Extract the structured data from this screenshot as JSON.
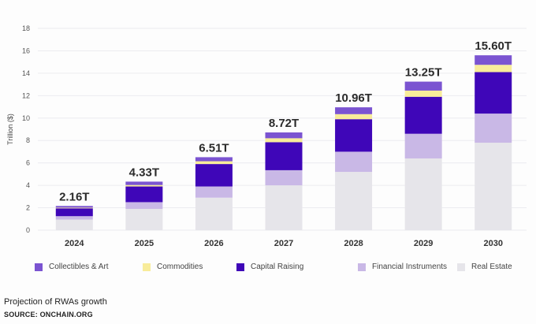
{
  "chart_data": {
    "type": "bar",
    "stacked": true,
    "title": "",
    "xlabel": "",
    "ylabel": "Trillion ($)",
    "ylim": [
      0,
      18
    ],
    "yticks": [
      0,
      2,
      4,
      6,
      8,
      10,
      12,
      14,
      16,
      18
    ],
    "grid": true,
    "legend_position": "bottom",
    "categories": [
      "2024",
      "2025",
      "2026",
      "2027",
      "2028",
      "2029",
      "2030"
    ],
    "totals_labels": [
      "2.16T",
      "4.33T",
      "6.51T",
      "8.72T",
      "10.96T",
      "13.25T",
      "15.60T"
    ],
    "series": [
      {
        "name": "Real Estate",
        "color": "#e6e5ea",
        "values": [
          0.95,
          1.9,
          2.9,
          4.0,
          5.2,
          6.4,
          7.8
        ]
      },
      {
        "name": "Financial Instruments",
        "color": "#c9b8e6",
        "values": [
          0.3,
          0.6,
          1.0,
          1.35,
          1.8,
          2.2,
          2.6
        ]
      },
      {
        "name": "Capital Raising",
        "color": "#3f06b8",
        "values": [
          0.7,
          1.4,
          2.0,
          2.5,
          2.9,
          3.3,
          3.7
        ]
      },
      {
        "name": "Commodities",
        "color": "#f8ec9a",
        "values": [
          0.06,
          0.13,
          0.25,
          0.35,
          0.45,
          0.55,
          0.65
        ]
      },
      {
        "name": "Collectibles & Art",
        "color": "#7b54d1",
        "values": [
          0.15,
          0.3,
          0.36,
          0.52,
          0.61,
          0.8,
          0.85
        ]
      }
    ]
  },
  "legend": [
    {
      "label": "Collectibles & Art",
      "color": "#7b54d1"
    },
    {
      "label": "Commodities",
      "color": "#f8ec9a"
    },
    {
      "label": "Capital Raising",
      "color": "#3f06b8"
    },
    {
      "label": "Financial Instruments",
      "color": "#c9b8e6"
    },
    {
      "label": "Real Estate",
      "color": "#e6e5ea"
    }
  ],
  "caption": "Projection of RWAs growth",
  "source": "SOURCE: ONCHAIN.ORG"
}
